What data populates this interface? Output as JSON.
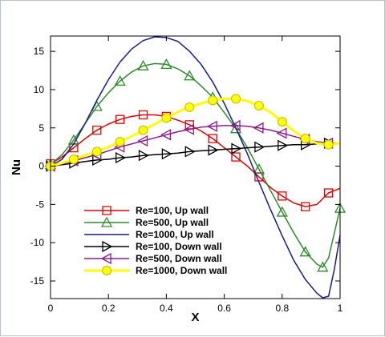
{
  "chart_data": {
    "type": "line",
    "xlabel": "X",
    "ylabel": "Nu",
    "xlim": [
      0,
      1
    ],
    "ylim": [
      -17.3,
      17
    ],
    "xticks": [
      0,
      0.2,
      0.4,
      0.6,
      0.8,
      1
    ],
    "yticks": [
      -15,
      -10,
      -5,
      0,
      5,
      10,
      15
    ],
    "legend_position": "lower-left",
    "grid": false,
    "series": [
      {
        "name": "Re=100, Up wall",
        "color": "#e00000",
        "marker": "square",
        "x": [
          0,
          0.04,
          0.08,
          0.12,
          0.16,
          0.2,
          0.24,
          0.28,
          0.32,
          0.36,
          0.4,
          0.44,
          0.48,
          0.52,
          0.56,
          0.6,
          0.64,
          0.68,
          0.72,
          0.76,
          0.8,
          0.84,
          0.88,
          0.92,
          0.96,
          1.0
        ],
        "y": [
          0.3,
          1.2,
          2.4,
          3.6,
          4.7,
          5.5,
          6.1,
          6.5,
          6.7,
          6.7,
          6.5,
          6.0,
          5.4,
          4.6,
          3.6,
          2.4,
          1.2,
          0.0,
          -1.4,
          -2.8,
          -3.9,
          -4.8,
          -5.3,
          -5.0,
          -3.5,
          -2.9
        ]
      },
      {
        "name": "Re=500, Up wall",
        "color": "#2e8b2e",
        "marker": "triangle-up",
        "x": [
          0,
          0.04,
          0.08,
          0.12,
          0.16,
          0.2,
          0.24,
          0.28,
          0.32,
          0.36,
          0.4,
          0.44,
          0.48,
          0.52,
          0.56,
          0.6,
          0.64,
          0.68,
          0.72,
          0.76,
          0.8,
          0.84,
          0.88,
          0.92,
          0.94,
          0.96,
          1.0
        ],
        "y": [
          0.2,
          1.5,
          3.4,
          5.6,
          7.8,
          9.6,
          11.1,
          12.3,
          13.1,
          13.4,
          13.3,
          12.7,
          11.8,
          10.5,
          9.0,
          7.0,
          4.9,
          2.4,
          -0.4,
          -3.2,
          -6.0,
          -8.7,
          -11.2,
          -12.8,
          -13.2,
          -12.0,
          -5.5
        ]
      },
      {
        "name": "Re=1000, Up wall",
        "color": "#1a1a8c",
        "marker": "none",
        "x": [
          0,
          0.04,
          0.08,
          0.12,
          0.16,
          0.2,
          0.24,
          0.28,
          0.32,
          0.36,
          0.4,
          0.44,
          0.48,
          0.52,
          0.56,
          0.6,
          0.64,
          0.68,
          0.72,
          0.76,
          0.8,
          0.84,
          0.88,
          0.92,
          0.94,
          0.96,
          0.98,
          1.0
        ],
        "y": [
          0.0,
          0.9,
          2.9,
          5.6,
          8.6,
          11.3,
          13.6,
          15.3,
          16.4,
          16.9,
          16.8,
          16.3,
          15.0,
          13.3,
          11.0,
          8.2,
          5.0,
          1.6,
          -2.1,
          -5.7,
          -9.1,
          -12.3,
          -14.8,
          -16.6,
          -17.2,
          -17.0,
          -13.5,
          -9.0
        ]
      },
      {
        "name": "Re=100, Down wall",
        "color": "#000000",
        "marker": "triangle-right",
        "x": [
          0,
          0.04,
          0.08,
          0.12,
          0.16,
          0.2,
          0.24,
          0.28,
          0.32,
          0.36,
          0.4,
          0.44,
          0.48,
          0.52,
          0.56,
          0.6,
          0.64,
          0.68,
          0.72,
          0.76,
          0.8,
          0.84,
          0.88,
          0.92,
          0.96,
          1.0
        ],
        "y": [
          0.0,
          0.2,
          0.4,
          0.6,
          0.8,
          0.9,
          1.1,
          1.2,
          1.4,
          1.5,
          1.6,
          1.7,
          1.9,
          2.0,
          2.1,
          2.2,
          2.3,
          2.4,
          2.5,
          2.6,
          2.7,
          2.8,
          2.8,
          2.9,
          3.0,
          3.0
        ]
      },
      {
        "name": "Re=500, Down wall",
        "color": "#8b1a8b",
        "marker": "triangle-left",
        "x": [
          0,
          0.04,
          0.08,
          0.12,
          0.16,
          0.2,
          0.24,
          0.28,
          0.32,
          0.36,
          0.4,
          0.44,
          0.48,
          0.52,
          0.56,
          0.6,
          0.64,
          0.68,
          0.72,
          0.76,
          0.8,
          0.84,
          0.88,
          0.92,
          0.96,
          1.0
        ],
        "y": [
          0.0,
          0.3,
          0.7,
          1.1,
          1.5,
          2.0,
          2.5,
          2.9,
          3.3,
          3.7,
          4.1,
          4.5,
          4.8,
          5.1,
          5.2,
          5.3,
          5.3,
          5.2,
          5.0,
          4.7,
          4.3,
          3.9,
          3.5,
          3.2,
          3.0,
          3.0
        ]
      },
      {
        "name": "Re=1000, Down wall",
        "color": "#ffff00",
        "marker": "circle",
        "x": [
          0,
          0.04,
          0.08,
          0.12,
          0.16,
          0.2,
          0.24,
          0.28,
          0.32,
          0.36,
          0.4,
          0.44,
          0.48,
          0.52,
          0.56,
          0.6,
          0.64,
          0.68,
          0.72,
          0.76,
          0.8,
          0.84,
          0.88,
          0.92,
          0.96,
          1.0
        ],
        "y": [
          0.0,
          0.4,
          0.9,
          1.4,
          1.9,
          2.5,
          3.2,
          3.9,
          4.7,
          5.5,
          6.3,
          7.1,
          7.7,
          8.2,
          8.6,
          8.8,
          8.8,
          8.5,
          7.9,
          7.0,
          5.8,
          4.6,
          3.6,
          3.0,
          2.8,
          3.0
        ]
      }
    ]
  }
}
